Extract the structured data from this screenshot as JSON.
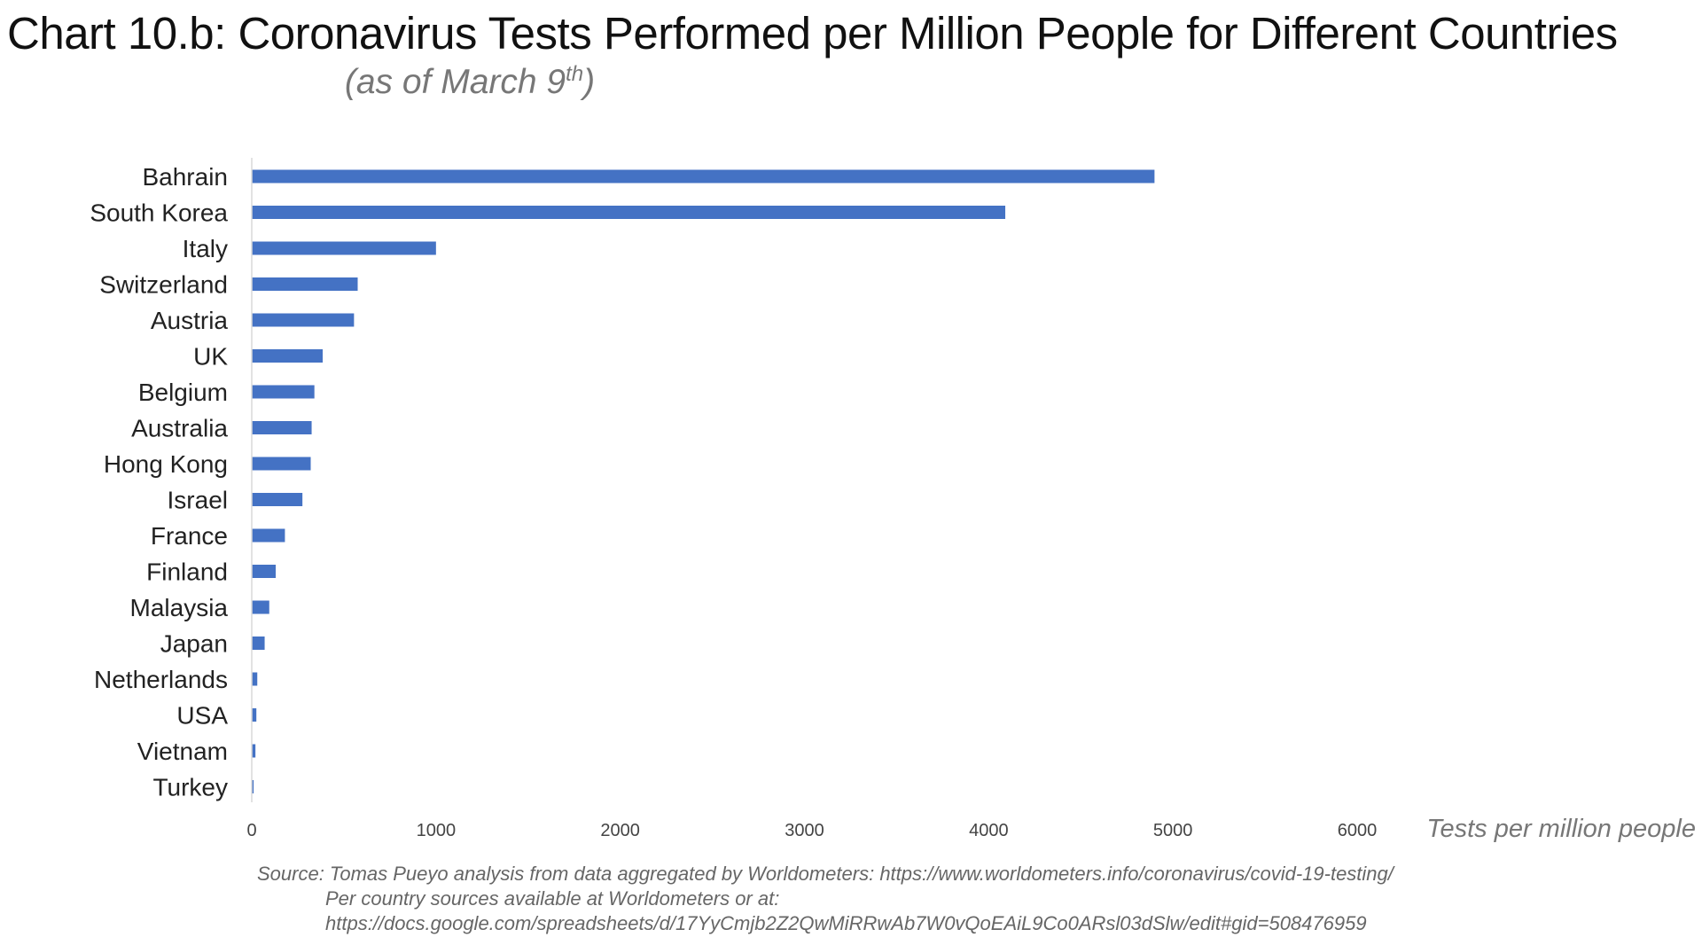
{
  "chart_data": {
    "type": "bar",
    "orientation": "horizontal",
    "title": "Chart 10.b: Coronavirus Tests Performed per Million People for Different Countries",
    "subtitle": {
      "prefix": "(as of March 9",
      "superscript": "th",
      "suffix": ")"
    },
    "xlabel": "Tests per million people",
    "ylabel": "",
    "xlim": [
      0,
      6000
    ],
    "xticks": [
      0,
      1000,
      2000,
      3000,
      4000,
      5000,
      6000
    ],
    "grid": false,
    "legend": "none",
    "bar_color": "#4472C4",
    "categories": [
      "Bahrain",
      "South Korea",
      "Italy",
      "Switzerland",
      "Austria",
      "UK",
      "Belgium",
      "Australia",
      "Hong Kong",
      "Israel",
      "France",
      "Finland",
      "Malaysia",
      "Japan",
      "Netherlands",
      "USA",
      "Vietnam",
      "Turkey"
    ],
    "values": [
      4900,
      4090,
      1000,
      575,
      555,
      385,
      340,
      325,
      320,
      275,
      180,
      130,
      95,
      70,
      30,
      25,
      20,
      10
    ]
  },
  "source": {
    "line1": "Source: Tomas Pueyo analysis from data aggregated by Worldometers: https://www.worldometers.info/coronavirus/covid-19-testing/",
    "line2": "Per country sources available at Worldometers or at:",
    "line3": "https://docs.google.com/spreadsheets/d/17YyCmjb2Z2QwMiRRwAb7W0vQoEAiL9Co0ARsl03dSlw/edit#gid=508476959"
  }
}
